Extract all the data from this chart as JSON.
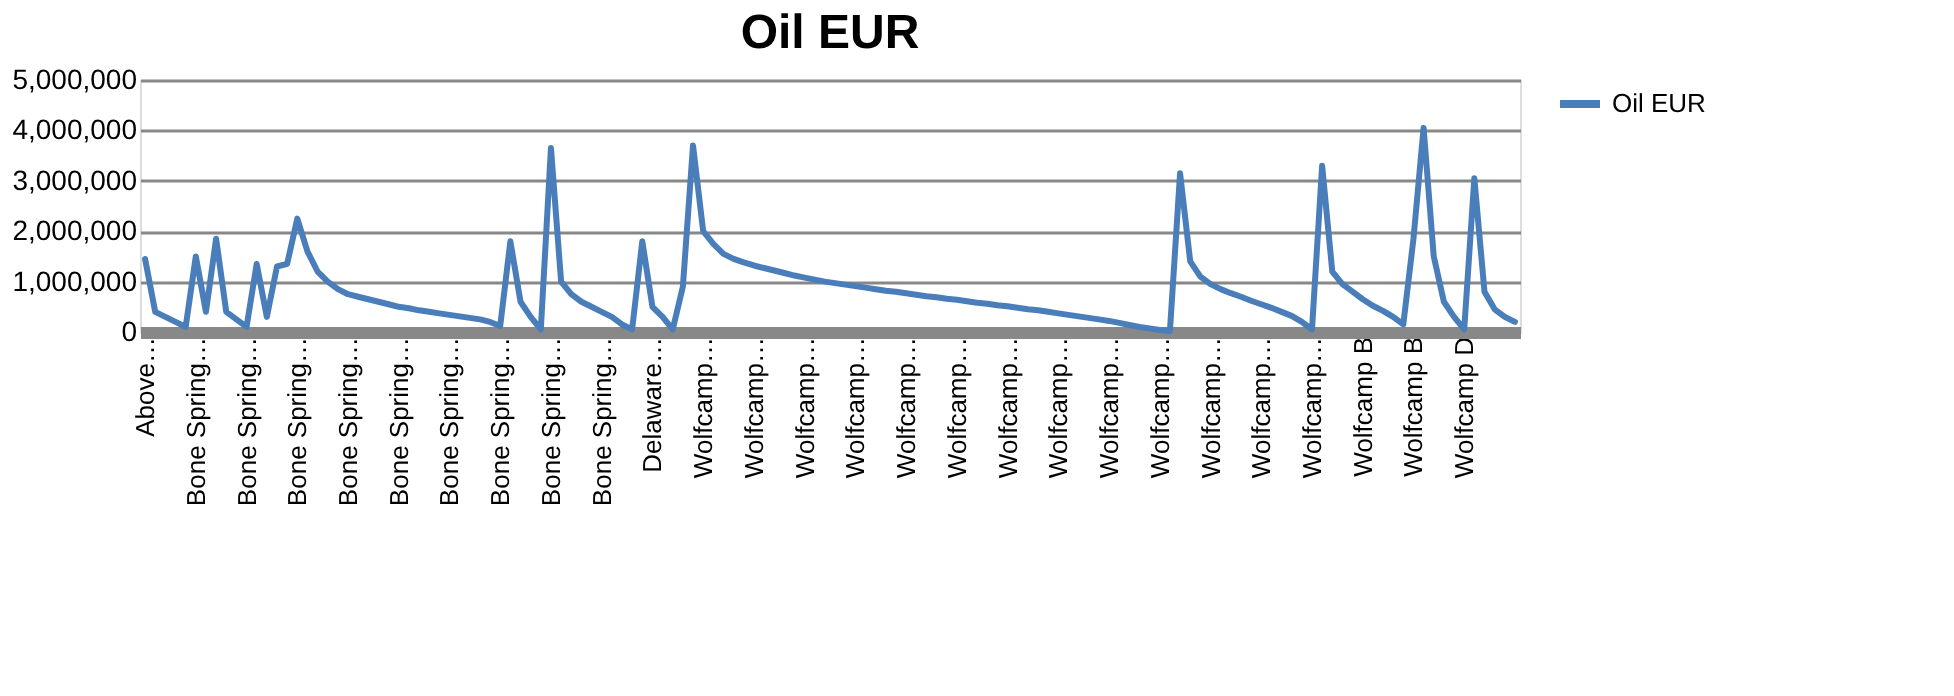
{
  "chart_data": {
    "type": "line",
    "title": "Oil EUR",
    "categories": [
      "Above…",
      null,
      null,
      null,
      null,
      "Bone Spring…",
      null,
      null,
      null,
      null,
      "Bone Spring…",
      null,
      null,
      null,
      null,
      "Bone Spring…",
      null,
      null,
      null,
      null,
      "Bone Spring…",
      null,
      null,
      null,
      null,
      "Bone Spring…",
      null,
      null,
      null,
      null,
      "Bone Spring…",
      null,
      null,
      null,
      null,
      "Bone Spring…",
      null,
      null,
      null,
      null,
      "Bone Spring…",
      null,
      null,
      null,
      null,
      "Bone Spring…",
      null,
      null,
      null,
      null,
      "Delaware…",
      null,
      null,
      null,
      null,
      "Wolfcamp…",
      null,
      null,
      null,
      null,
      "Wolfcamp…",
      null,
      null,
      null,
      null,
      "Wolfcamp…",
      null,
      null,
      null,
      null,
      "Wolfcamp…",
      null,
      null,
      null,
      null,
      "Wolfcamp…",
      null,
      null,
      null,
      null,
      "Wolfcamp…",
      null,
      null,
      null,
      null,
      "Wolfcamp…",
      null,
      null,
      null,
      null,
      "Wolfcamp…",
      null,
      null,
      null,
      null,
      "Wolfcamp…",
      null,
      null,
      null,
      null,
      "Wolfcamp…",
      null,
      null,
      null,
      null,
      "Wolfcamp…",
      null,
      null,
      null,
      null,
      "Wolfcamp…",
      null,
      null,
      null,
      null,
      "Wolfcamp…",
      null,
      null,
      null,
      null,
      "Wolfcamp B",
      null,
      null,
      null,
      null,
      "Wolfcamp B",
      null,
      null,
      null,
      null,
      "Wolfcamp D",
      null,
      null,
      null,
      null,
      null
    ],
    "series": [
      {
        "name": "Oil EUR",
        "color": "#4a7ebb",
        "values": [
          1450000,
          400000,
          300000,
          200000,
          100000,
          1500000,
          400000,
          1850000,
          400000,
          250000,
          100000,
          1350000,
          300000,
          1300000,
          1350000,
          2250000,
          1600000,
          1200000,
          1000000,
          850000,
          750000,
          700000,
          650000,
          600000,
          550000,
          500000,
          470000,
          430000,
          400000,
          370000,
          340000,
          310000,
          280000,
          250000,
          200000,
          120000,
          1800000,
          600000,
          300000,
          50000,
          3650000,
          1000000,
          750000,
          600000,
          500000,
          400000,
          300000,
          150000,
          50000,
          1800000,
          500000,
          300000,
          50000,
          900000,
          3700000,
          2000000,
          1750000,
          1550000,
          1450000,
          1380000,
          1320000,
          1270000,
          1220000,
          1170000,
          1120000,
          1080000,
          1040000,
          1000000,
          970000,
          940000,
          910000,
          880000,
          850000,
          820000,
          800000,
          770000,
          740000,
          710000,
          690000,
          660000,
          640000,
          610000,
          580000,
          560000,
          530000,
          510000,
          480000,
          450000,
          430000,
          400000,
          370000,
          340000,
          310000,
          280000,
          250000,
          220000,
          180000,
          140000,
          100000,
          70000,
          40000,
          20000,
          3150000,
          1400000,
          1100000,
          950000,
          850000,
          770000,
          700000,
          620000,
          550000,
          480000,
          400000,
          320000,
          200000,
          50000,
          3300000,
          1200000,
          950000,
          800000,
          650000,
          520000,
          420000,
          300000,
          150000,
          1850000,
          4050000,
          1500000,
          600000,
          300000,
          50000,
          3050000,
          800000,
          450000,
          300000,
          200000
        ]
      }
    ],
    "ylim": [
      0,
      5000000
    ],
    "yticks": [
      0,
      {
        "value": 1000000,
        "label": "1,000,000"
      },
      {
        "value": 2000000,
        "label": "2,000,000"
      },
      {
        "value": 3000000,
        "label": "3,000,000"
      },
      {
        "value": 4000000,
        "label": "4,000,000"
      },
      {
        "value": 5000000,
        "label": "5,000,000"
      }
    ],
    "grid": "y",
    "legend": "right"
  }
}
